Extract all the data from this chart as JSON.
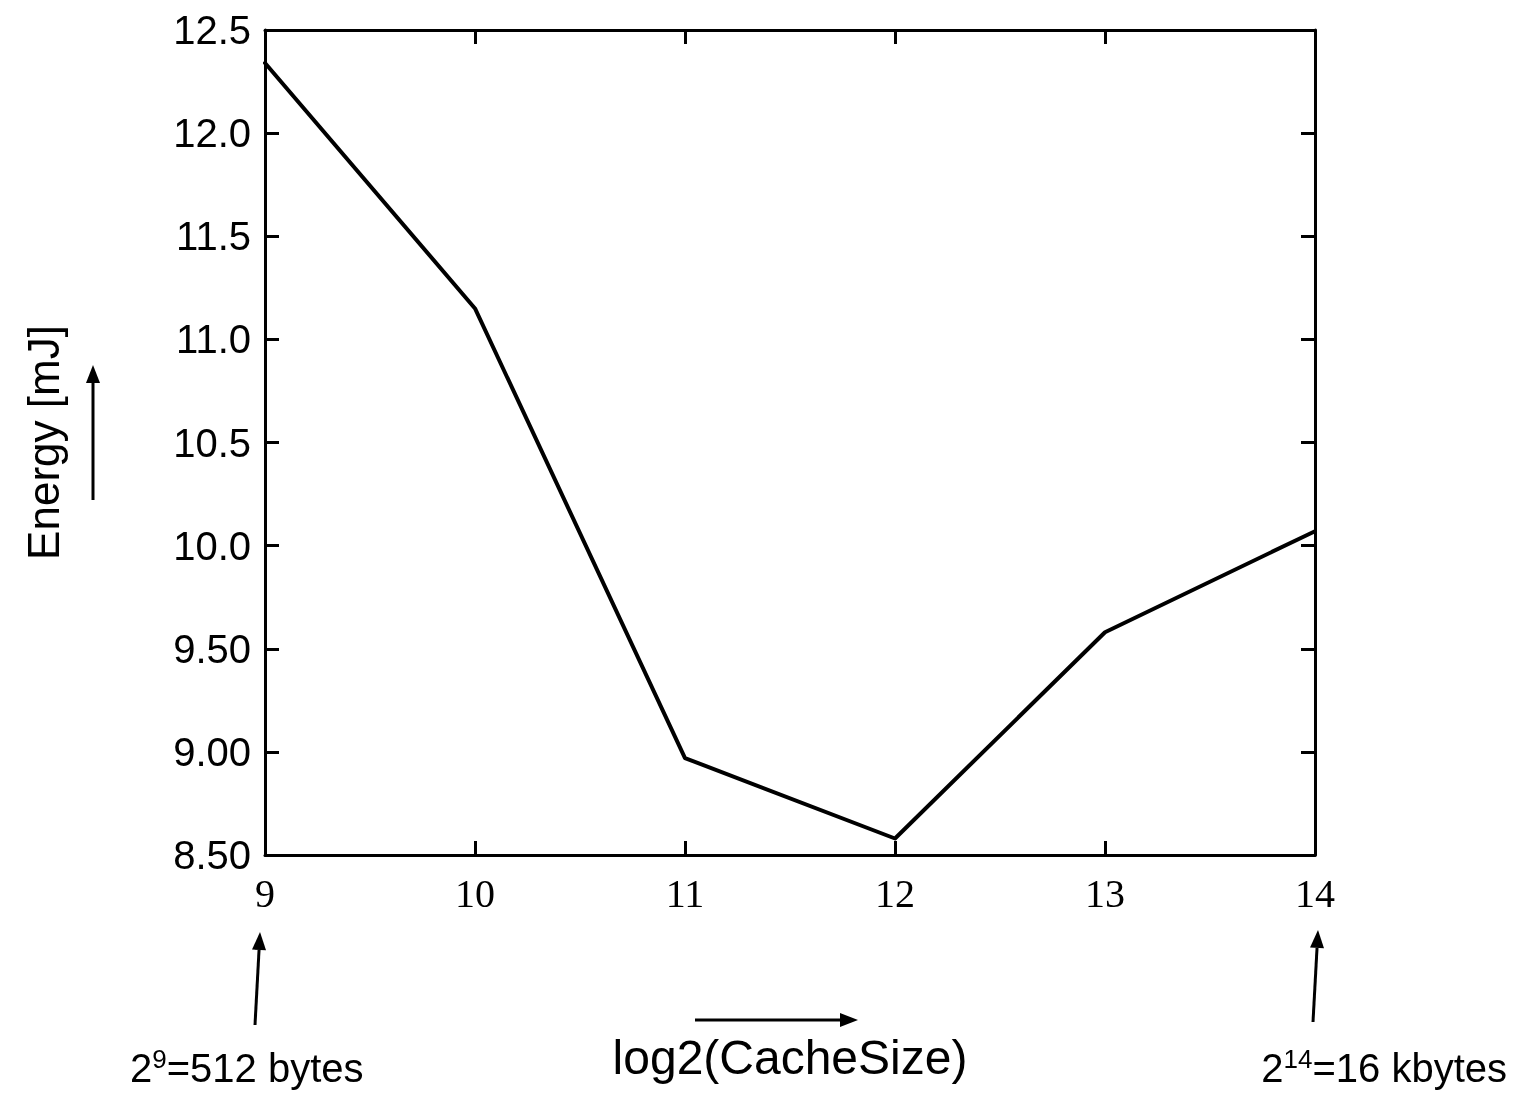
{
  "chart_data": {
    "type": "line",
    "xlabel": "log2(CacheSize)",
    "ylabel": "Energy [mJ]",
    "x": [
      9,
      10,
      11,
      12,
      13,
      14
    ],
    "series": [
      {
        "color": "#000000",
        "values": [
          12.34,
          11.15,
          8.97,
          8.58,
          9.58,
          10.07
        ]
      }
    ],
    "xlim": [
      9,
      14
    ],
    "xticks": [
      9,
      10,
      11,
      12,
      13,
      14
    ],
    "ylim": [
      8.5,
      12.5
    ],
    "yticks": [
      {
        "value": 8.5,
        "label": "8.50"
      },
      {
        "value": 9,
        "label": "9.00"
      },
      {
        "value": 9.5,
        "label": "9.50"
      },
      {
        "value": 10,
        "label": "10.0"
      },
      10.5,
      {
        "value": 11,
        "label": "11.0"
      },
      11.5,
      {
        "value": 12,
        "label": "12.0"
      },
      12.5
    ],
    "annotations": [
      "2$^{9}$=512 bytes",
      "2$^{14}$=16 kbytes"
    ],
    "grid": false,
    "marker": "none",
    "line_style": "solid"
  }
}
